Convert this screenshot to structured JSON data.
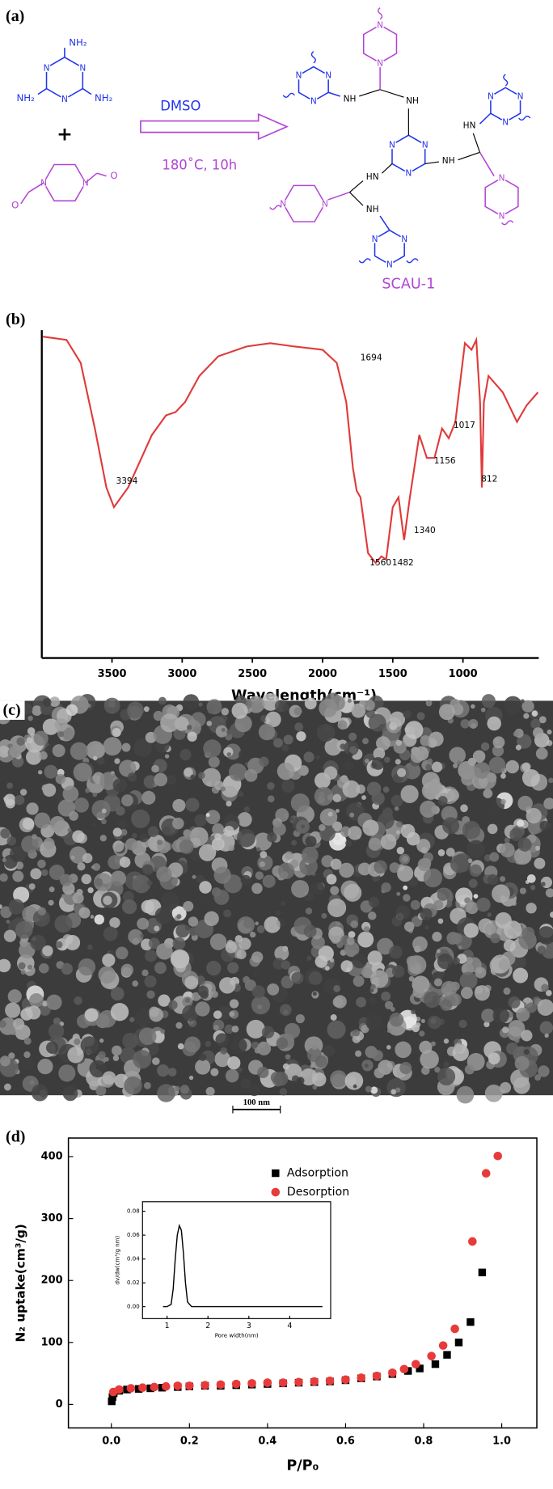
{
  "panel_a": {
    "label": "(a)",
    "amine": "NH₂",
    "plus": "+",
    "nitrogen": "N",
    "oxygen": "O",
    "nh": "NH",
    "hn": "HN",
    "solvent": "DMSO",
    "conditions": "180˚C, 10h",
    "product": "SCAU-1"
  },
  "panel_b": {
    "label": "(b)"
  },
  "panel_c": {
    "label": "(c)",
    "scale_bar": "100 nm"
  },
  "panel_d": {
    "label": "(d)"
  },
  "chart_data": [
    {
      "type": "line",
      "x_label": "Wavelength(cm⁻¹)",
      "x": [
        3993,
        3824,
        3723,
        3622,
        3540,
        3486,
        3385,
        3216,
        3115,
        3047,
        2980,
        2878,
        2743,
        2541,
        2372,
        2203,
        2000,
        1899,
        1831,
        1784,
        1757,
        1730,
        1676,
        1622,
        1581,
        1547,
        1500,
        1459,
        1419,
        1378,
        1311,
        1257,
        1203,
        1149,
        1101,
        1054,
        986,
        939,
        905,
        878,
        865,
        851,
        818,
        716,
        615,
        547,
        466
      ],
      "series": [
        {
          "color": "#e03a3a",
          "values": [
            98,
            97,
            90,
            70,
            52,
            46,
            52,
            68,
            74,
            75,
            78,
            86,
            92,
            95,
            96,
            95,
            94,
            90,
            78,
            58,
            51,
            49,
            32,
            29,
            31,
            30,
            46,
            49,
            36,
            49,
            68,
            61,
            61,
            70,
            67,
            72,
            96,
            94,
            97,
            78,
            52,
            78,
            86,
            81,
            72,
            77,
            81
          ]
        }
      ],
      "peak_labels": [
        3394,
        1694,
        1560,
        1482,
        1340,
        1156,
        1017,
        812
      ],
      "xlim": [
        4000,
        460
      ],
      "ylim": [
        0,
        100
      ],
      "xticks": [
        3500,
        3000,
        2500,
        2000,
        1500,
        1000
      ]
    },
    {
      "type": "scatter",
      "x_label": "P/P₀",
      "y_label": "N₂ uptake(cm³/g)",
      "series": [
        {
          "name": "Adsorption",
          "color": "#000000",
          "marker": "square",
          "x": [
            0.001,
            0.003,
            0.006,
            0.02,
            0.04,
            0.07,
            0.1,
            0.13,
            0.17,
            0.2,
            0.24,
            0.28,
            0.32,
            0.36,
            0.4,
            0.44,
            0.48,
            0.52,
            0.56,
            0.6,
            0.64,
            0.68,
            0.72,
            0.76,
            0.79,
            0.83,
            0.86,
            0.89,
            0.92,
            0.95
          ],
          "values": [
            5,
            12,
            18,
            22,
            24,
            25,
            26,
            27,
            28,
            29,
            30,
            30,
            31,
            32,
            33,
            34,
            35,
            36,
            37,
            39,
            42,
            45,
            49,
            54,
            58,
            65,
            80,
            100,
            133,
            213
          ]
        },
        {
          "name": "Desorption",
          "color": "#e83a3a",
          "marker": "circle",
          "x": [
            0.005,
            0.02,
            0.05,
            0.08,
            0.11,
            0.14,
            0.17,
            0.2,
            0.24,
            0.28,
            0.32,
            0.36,
            0.4,
            0.44,
            0.48,
            0.52,
            0.56,
            0.6,
            0.64,
            0.68,
            0.72,
            0.75,
            0.78,
            0.82,
            0.85,
            0.88,
            0.925,
            0.96,
            0.99
          ],
          "values": [
            20,
            24,
            26,
            27,
            28,
            29,
            30,
            30,
            31,
            32,
            33,
            34,
            35,
            35,
            36,
            37,
            38,
            40,
            43,
            46,
            51,
            57,
            65,
            78,
            95,
            122,
            263,
            373,
            401
          ]
        }
      ],
      "xlim": [
        -0.11,
        1.09
      ],
      "ylim": [
        -38,
        430
      ],
      "xticks": [
        {
          "value": 0,
          "label": "0.0"
        },
        0.2,
        0.4,
        0.6,
        0.8,
        {
          "value": 1,
          "label": "1.0"
        }
      ],
      "yticks": [
        0,
        100,
        200,
        300,
        400
      ],
      "legend": "upper center"
    },
    {
      "type": "line",
      "x_label": "Pore width(nm)",
      "y_label": "dv/dw(cm³/g nm)",
      "x": [
        0.9,
        1.0,
        1.1,
        1.15,
        1.2,
        1.25,
        1.3,
        1.35,
        1.4,
        1.45,
        1.5,
        1.6,
        2.0,
        3.0,
        4.0,
        4.8
      ],
      "series": [
        {
          "color": "#000000",
          "values": [
            0,
            0,
            0.002,
            0.015,
            0.04,
            0.06,
            0.068,
            0.064,
            0.045,
            0.02,
            0.004,
            0,
            0,
            0,
            0,
            0
          ]
        }
      ],
      "xlim": [
        0.4,
        5.0
      ],
      "ylim": [
        -0.01,
        0.088
      ],
      "xticks": [
        1,
        2,
        3,
        4
      ],
      "yticks": [
        {
          "value": 0,
          "label": "0.00"
        },
        0.02,
        0.04,
        0.06,
        0.08
      ]
    }
  ]
}
